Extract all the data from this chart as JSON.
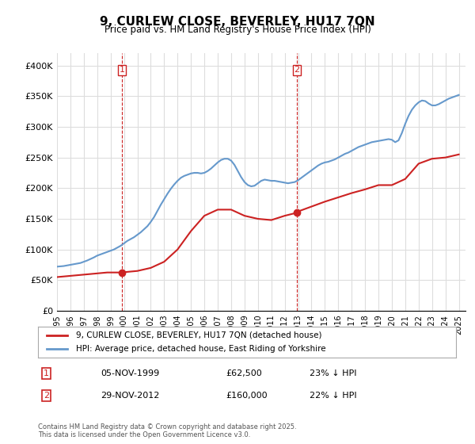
{
  "title": "9, CURLEW CLOSE, BEVERLEY, HU17 7QN",
  "subtitle": "Price paid vs. HM Land Registry's House Price Index (HPI)",
  "ylabel_ticks": [
    "£0",
    "£50K",
    "£100K",
    "£150K",
    "£200K",
    "£250K",
    "£300K",
    "£350K",
    "£400K"
  ],
  "ytick_values": [
    0,
    50000,
    100000,
    150000,
    200000,
    250000,
    300000,
    350000,
    400000
  ],
  "ylim": [
    0,
    420000
  ],
  "xlim_start": 1995.0,
  "xlim_end": 2025.5,
  "xtick_years": [
    1995,
    1996,
    1997,
    1998,
    1999,
    2000,
    2001,
    2002,
    2003,
    2004,
    2005,
    2006,
    2007,
    2008,
    2009,
    2010,
    2011,
    2012,
    2013,
    2014,
    2015,
    2016,
    2017,
    2018,
    2019,
    2020,
    2021,
    2022,
    2023,
    2024,
    2025
  ],
  "hpi_color": "#6699cc",
  "price_color": "#cc2222",
  "background_color": "#ffffff",
  "grid_color": "#dddddd",
  "legend_label_price": "9, CURLEW CLOSE, BEVERLEY, HU17 7QN (detached house)",
  "legend_label_hpi": "HPI: Average price, detached house, East Riding of Yorkshire",
  "transaction1_label": "1",
  "transaction1_date": "05-NOV-1999",
  "transaction1_price": "£62,500",
  "transaction1_hpi": "23% ↓ HPI",
  "transaction2_label": "2",
  "transaction2_date": "29-NOV-2012",
  "transaction2_price": "£160,000",
  "transaction2_hpi": "22% ↓ HPI",
  "footer": "Contains HM Land Registry data © Crown copyright and database right 2025.\nThis data is licensed under the Open Government Licence v3.0.",
  "marker1_x": 1999.85,
  "marker1_y": 62500,
  "marker2_x": 2012.92,
  "marker2_y": 160000,
  "vline1_x": 1999.85,
  "vline2_x": 2012.92,
  "hpi_data": {
    "x": [
      1995.0,
      1995.25,
      1995.5,
      1995.75,
      1996.0,
      1996.25,
      1996.5,
      1996.75,
      1997.0,
      1997.25,
      1997.5,
      1997.75,
      1998.0,
      1998.25,
      1998.5,
      1998.75,
      1999.0,
      1999.25,
      1999.5,
      1999.75,
      2000.0,
      2000.25,
      2000.5,
      2000.75,
      2001.0,
      2001.25,
      2001.5,
      2001.75,
      2002.0,
      2002.25,
      2002.5,
      2002.75,
      2003.0,
      2003.25,
      2003.5,
      2003.75,
      2004.0,
      2004.25,
      2004.5,
      2004.75,
      2005.0,
      2005.25,
      2005.5,
      2005.75,
      2006.0,
      2006.25,
      2006.5,
      2006.75,
      2007.0,
      2007.25,
      2007.5,
      2007.75,
      2008.0,
      2008.25,
      2008.5,
      2008.75,
      2009.0,
      2009.25,
      2009.5,
      2009.75,
      2010.0,
      2010.25,
      2010.5,
      2010.75,
      2011.0,
      2011.25,
      2011.5,
      2011.75,
      2012.0,
      2012.25,
      2012.5,
      2012.75,
      2013.0,
      2013.25,
      2013.5,
      2013.75,
      2014.0,
      2014.25,
      2014.5,
      2014.75,
      2015.0,
      2015.25,
      2015.5,
      2015.75,
      2016.0,
      2016.25,
      2016.5,
      2016.75,
      2017.0,
      2017.25,
      2017.5,
      2017.75,
      2018.0,
      2018.25,
      2018.5,
      2018.75,
      2019.0,
      2019.25,
      2019.5,
      2019.75,
      2020.0,
      2020.25,
      2020.5,
      2020.75,
      2021.0,
      2021.25,
      2021.5,
      2021.75,
      2022.0,
      2022.25,
      2022.5,
      2022.75,
      2023.0,
      2023.25,
      2023.5,
      2023.75,
      2024.0,
      2024.25,
      2024.5,
      2024.75,
      2025.0
    ],
    "y": [
      72000,
      72500,
      73000,
      74000,
      75000,
      76000,
      77000,
      78000,
      80000,
      82000,
      84500,
      87000,
      90000,
      92000,
      94000,
      96000,
      98000,
      100000,
      103000,
      106000,
      110000,
      114000,
      117000,
      120000,
      124000,
      128000,
      133000,
      138000,
      145000,
      153000,
      163000,
      173000,
      182000,
      191000,
      199000,
      206000,
      212000,
      217000,
      220000,
      222000,
      224000,
      225000,
      225000,
      224000,
      225000,
      228000,
      232000,
      237000,
      242000,
      246000,
      248000,
      248000,
      245000,
      238000,
      228000,
      218000,
      210000,
      205000,
      203000,
      204000,
      208000,
      212000,
      214000,
      213000,
      212000,
      212000,
      211000,
      210000,
      209000,
      208000,
      209000,
      210000,
      213000,
      217000,
      221000,
      225000,
      229000,
      233000,
      237000,
      240000,
      242000,
      243000,
      245000,
      247000,
      250000,
      253000,
      256000,
      258000,
      261000,
      264000,
      267000,
      269000,
      271000,
      273000,
      275000,
      276000,
      277000,
      278000,
      279000,
      280000,
      279000,
      275000,
      278000,
      290000,
      305000,
      318000,
      328000,
      335000,
      340000,
      343000,
      342000,
      338000,
      335000,
      335000,
      337000,
      340000,
      343000,
      346000,
      348000,
      350000,
      352000
    ]
  },
  "price_data": {
    "x": [
      1995.0,
      1995.25,
      1995.5,
      1995.75,
      1996.0,
      1996.25,
      1996.5,
      1996.75,
      1997.0,
      1997.25,
      1997.5,
      1997.75,
      1998.0,
      1998.25,
      1998.5,
      1998.75,
      1999.0,
      1999.25,
      1999.5,
      1999.75,
      1999.85,
      2000.0,
      2001.0,
      2002.0,
      2003.0,
      2004.0,
      2005.0,
      2006.0,
      2007.0,
      2008.0,
      2009.0,
      2010.0,
      2011.0,
      2012.0,
      2012.92,
      2013.0,
      2014.0,
      2015.0,
      2016.0,
      2017.0,
      2018.0,
      2019.0,
      2020.0,
      2021.0,
      2022.0,
      2023.0,
      2024.0,
      2025.0
    ],
    "y": [
      55000,
      55500,
      56000,
      56500,
      57000,
      57500,
      58000,
      58500,
      59000,
      59500,
      60000,
      60500,
      61000,
      61500,
      62000,
      62500,
      62500,
      62500,
      62500,
      62500,
      62500,
      63000,
      65000,
      70000,
      80000,
      100000,
      130000,
      155000,
      165000,
      165000,
      155000,
      150000,
      148000,
      155000,
      160000,
      162000,
      170000,
      178000,
      185000,
      192000,
      198000,
      205000,
      205000,
      215000,
      240000,
      248000,
      250000,
      255000
    ]
  }
}
